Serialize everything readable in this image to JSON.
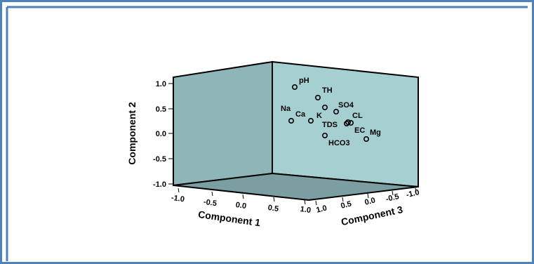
{
  "chart_data": {
    "type": "scatter",
    "dimensions": 3,
    "xlabel": "Component 1",
    "ylabel": "Component 2",
    "zlabel": "Component 3",
    "xlim": [
      -1.0,
      1.0
    ],
    "ylim": [
      -1.0,
      1.0
    ],
    "zlim": [
      -1.0,
      1.0
    ],
    "x_ticks": [
      "-1.0",
      "-0.5",
      "0.0",
      "0.5",
      "1.0"
    ],
    "y_ticks": [
      "1.0",
      "0.5",
      "0.0",
      "-0.5",
      "-1.0"
    ],
    "z_ticks": [
      "1.0",
      "0.5",
      "0.0",
      "-0.5",
      "-1.0"
    ],
    "points": [
      {
        "label": "pH",
        "y": 0.94
      },
      {
        "label": "TH",
        "y": 0.72
      },
      {
        "label": "SO4",
        "y": 0.52
      },
      {
        "label": "Na",
        "y": 0.26
      },
      {
        "label": "Ca",
        "y": 0.26
      },
      {
        "label": "K",
        "y": 0.26
      },
      {
        "label": "CL",
        "y": 0.23
      },
      {
        "label": "TDS",
        "y": 0.21
      },
      {
        "label": "EC",
        "y": 0.44
      },
      {
        "label": "Mg",
        "y": -0.12
      },
      {
        "label": "HCO3",
        "y": -0.06
      }
    ],
    "colors": {
      "frame": "#4f81bd",
      "back_wall": "#a6cfd2",
      "side_wall": "#8eb5b8",
      "floor": "#7a9ea1",
      "marker": "#000000"
    }
  }
}
